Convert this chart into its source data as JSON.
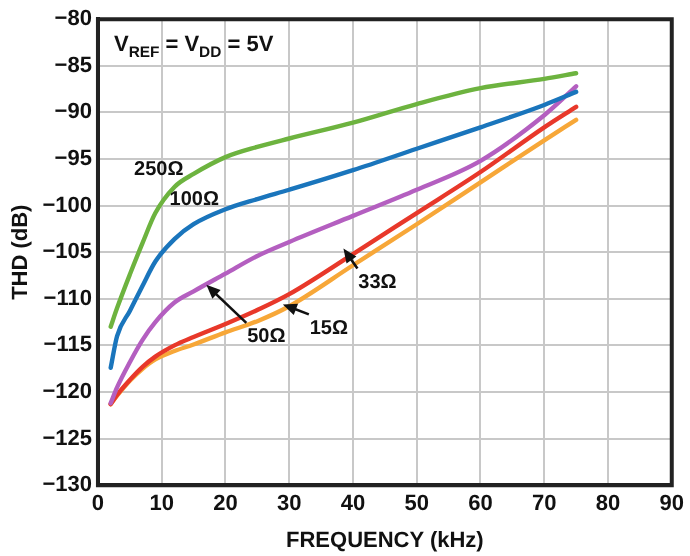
{
  "chart_data": {
    "type": "line",
    "xlabel": "FREQUENCY (kHz)",
    "ylabel": "THD (dB)",
    "xlim": [
      0,
      90
    ],
    "xticks": [
      0,
      10,
      20,
      30,
      40,
      50,
      60,
      70,
      80,
      90
    ],
    "ylim": [
      -130,
      -80
    ],
    "yticks": [
      -130,
      -125,
      -120,
      -115,
      -110,
      -105,
      -100,
      -95,
      -90,
      -85,
      -80
    ],
    "grid": true,
    "legend": false,
    "marker": "none",
    "line_style": "solid",
    "x": [
      2,
      3,
      5,
      7,
      9,
      12,
      15,
      20,
      25,
      30,
      40,
      50,
      60,
      70,
      75
    ],
    "series": [
      {
        "color": "#6db33f",
        "values": [
          -113,
          -111,
          -107.4,
          -104,
          -100.8,
          -98,
          -96.6,
          -94.8,
          -93.7,
          -92.8,
          -91.1,
          -89.1,
          -87.4,
          -86.4,
          -85.8
        ]
      },
      {
        "color": "#1a75bc",
        "values": [
          -117.4,
          -114,
          -111.3,
          -108.6,
          -106,
          -103.6,
          -102,
          -100.4,
          -99.3,
          -98.3,
          -96.2,
          -93.9,
          -91.6,
          -89.2,
          -87.8
        ]
      },
      {
        "color": "#b45fc0",
        "values": [
          -121.2,
          -119.5,
          -116.8,
          -114.4,
          -112.5,
          -110.4,
          -109.2,
          -107.3,
          -105.4,
          -103.9,
          -101.1,
          -98.3,
          -95.2,
          -90.3,
          -87.2
        ]
      },
      {
        "color": "#e8382a",
        "values": [
          -121.3,
          -120.3,
          -118.7,
          -117.3,
          -116.2,
          -115,
          -114.1,
          -112.7,
          -111.2,
          -109.5,
          -105.2,
          -100.8,
          -96.4,
          -91.6,
          -89.4
        ]
      },
      {
        "color": "#f7a738",
        "values": [
          -121.3,
          -120.4,
          -118.8,
          -117.5,
          -116.5,
          -115.6,
          -114.9,
          -113.6,
          -112.4,
          -110.8,
          -106.4,
          -102,
          -97.5,
          -93,
          -90.8
        ]
      }
    ],
    "annotations": [
      "V$_{REF}$ = V$_{DD}$ = 5V",
      {
        "text": "250Ω",
        "x": 18,
        "y": -95.5
      },
      {
        "text": "100Ω",
        "x": 22,
        "y": -100
      },
      {
        "text": "50Ω",
        "x": 17,
        "y": -108.5
      },
      {
        "text": "15Ω",
        "x": 29,
        "y": -110.6
      },
      {
        "text": "33Ω",
        "x": 38.5,
        "y": -104.6
      }
    ]
  }
}
